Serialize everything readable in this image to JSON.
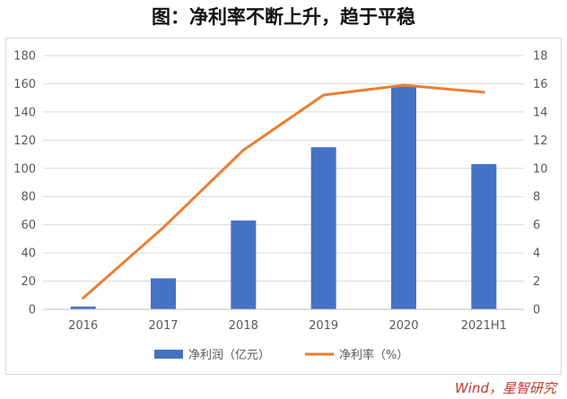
{
  "title": "图：净利率不断上升，趋于平稳",
  "source": "Wind，星智研究",
  "chart_data": {
    "type": "bar",
    "categories": [
      "2016",
      "2017",
      "2018",
      "2019",
      "2020",
      "2021H1"
    ],
    "series": [
      {
        "name": "净利润（亿元）",
        "type": "bar",
        "axis": "left",
        "color": "#4472c4",
        "values": [
          2,
          22,
          63,
          115,
          158,
          103
        ]
      },
      {
        "name": "净利率（%）",
        "type": "line",
        "axis": "right",
        "color": "#ed7d31",
        "values": [
          0.8,
          5.8,
          11.3,
          15.2,
          15.9,
          15.4
        ]
      }
    ],
    "y_left": {
      "min": 0,
      "max": 180,
      "ticks": [
        0,
        20,
        40,
        60,
        80,
        100,
        120,
        140,
        160,
        180
      ]
    },
    "y_right": {
      "min": 0,
      "max": 18,
      "ticks": [
        0,
        2,
        4,
        6,
        8,
        10,
        12,
        14,
        16,
        18
      ]
    },
    "grid": true,
    "legend_position": "bottom"
  }
}
